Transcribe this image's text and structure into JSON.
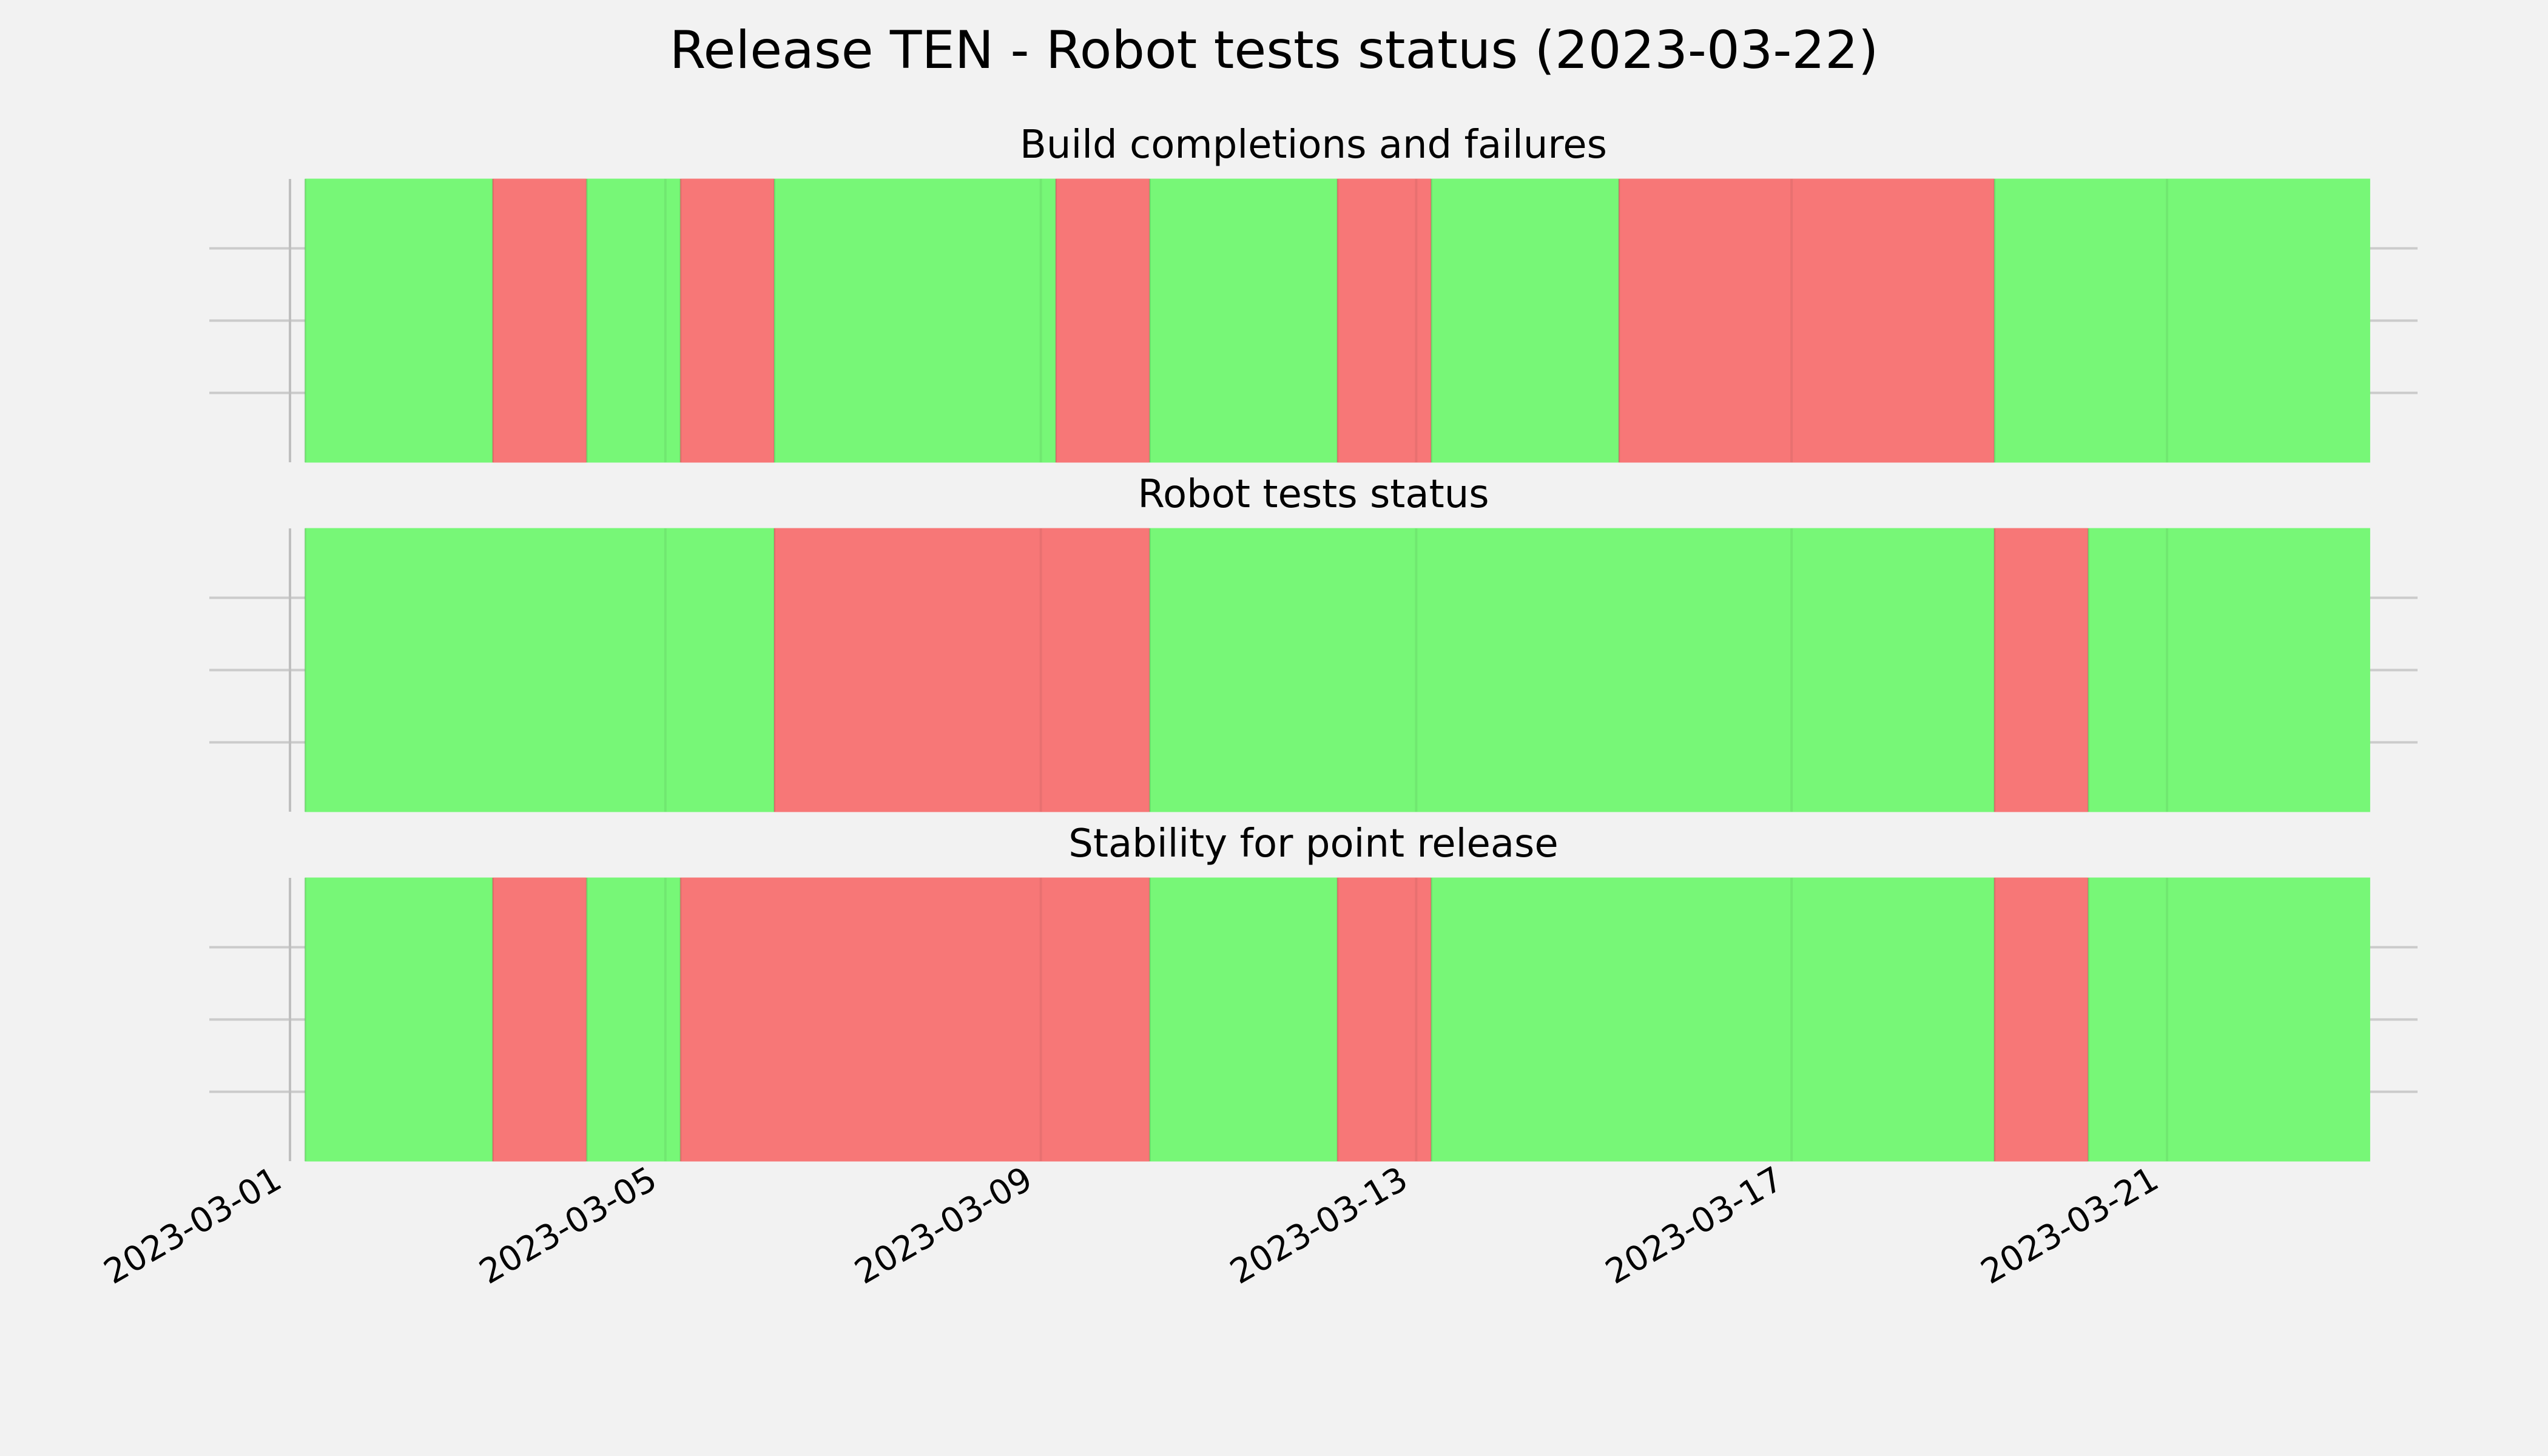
{
  "chart_data": {
    "type": "timeline",
    "title": "Release TEN - Robot tests status (2023-03-22)",
    "x_axis": {
      "type": "date",
      "start": "2023-03-01",
      "end": "2023-03-23",
      "ticks": [
        "2023-03-01",
        "2023-03-05",
        "2023-03-09",
        "2023-03-13",
        "2023-03-17",
        "2023-03-21"
      ]
    },
    "grid": true,
    "colors": {
      "pass": "#77f777",
      "fail": "#f77777",
      "background": "#f2f2f2",
      "grid": "#cbcbcb"
    },
    "panels": [
      {
        "title": "Build completions and failures",
        "segments": [
          {
            "start": "2023-03-01",
            "end": "2023-03-03",
            "status": "pass"
          },
          {
            "start": "2023-03-03",
            "end": "2023-03-04",
            "status": "fail"
          },
          {
            "start": "2023-03-04",
            "end": "2023-03-05",
            "status": "pass"
          },
          {
            "start": "2023-03-05",
            "end": "2023-03-06",
            "status": "fail"
          },
          {
            "start": "2023-03-06",
            "end": "2023-03-09",
            "status": "pass"
          },
          {
            "start": "2023-03-09",
            "end": "2023-03-10",
            "status": "fail"
          },
          {
            "start": "2023-03-10",
            "end": "2023-03-12",
            "status": "pass"
          },
          {
            "start": "2023-03-12",
            "end": "2023-03-13",
            "status": "fail"
          },
          {
            "start": "2023-03-13",
            "end": "2023-03-15",
            "status": "pass"
          },
          {
            "start": "2023-03-15",
            "end": "2023-03-19",
            "status": "fail"
          },
          {
            "start": "2023-03-19",
            "end": "2023-03-23",
            "status": "pass"
          }
        ]
      },
      {
        "title": "Robot tests status",
        "segments": [
          {
            "start": "2023-03-01",
            "end": "2023-03-06",
            "status": "pass"
          },
          {
            "start": "2023-03-06",
            "end": "2023-03-10",
            "status": "fail"
          },
          {
            "start": "2023-03-10",
            "end": "2023-03-19",
            "status": "pass"
          },
          {
            "start": "2023-03-19",
            "end": "2023-03-20",
            "status": "fail"
          },
          {
            "start": "2023-03-20",
            "end": "2023-03-23",
            "status": "pass"
          }
        ]
      },
      {
        "title": "Stability for point release",
        "segments": [
          {
            "start": "2023-03-01",
            "end": "2023-03-03",
            "status": "pass"
          },
          {
            "start": "2023-03-03",
            "end": "2023-03-04",
            "status": "fail"
          },
          {
            "start": "2023-03-04",
            "end": "2023-03-05",
            "status": "pass"
          },
          {
            "start": "2023-03-05",
            "end": "2023-03-10",
            "status": "fail"
          },
          {
            "start": "2023-03-10",
            "end": "2023-03-12",
            "status": "pass"
          },
          {
            "start": "2023-03-12",
            "end": "2023-03-13",
            "status": "fail"
          },
          {
            "start": "2023-03-13",
            "end": "2023-03-19",
            "status": "pass"
          },
          {
            "start": "2023-03-19",
            "end": "2023-03-20",
            "status": "fail"
          },
          {
            "start": "2023-03-20",
            "end": "2023-03-23",
            "status": "pass"
          }
        ]
      }
    ]
  }
}
